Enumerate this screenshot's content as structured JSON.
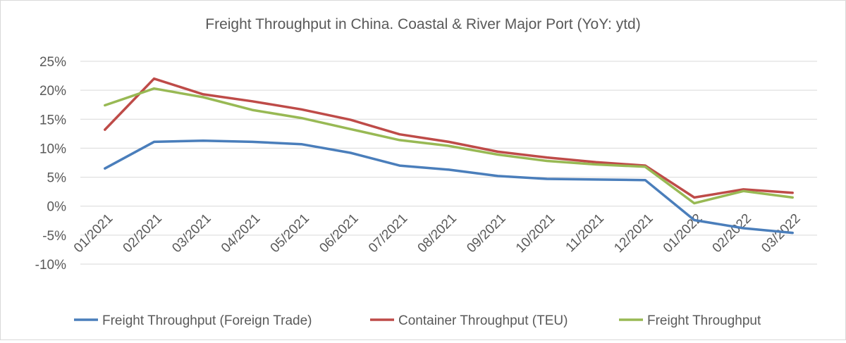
{
  "chart_data": {
    "type": "line",
    "title": "Freight Throughput in China. Coastal & River Major Port (YoY: ytd)",
    "xlabel": "",
    "ylabel": "",
    "ylim": [
      -10,
      25
    ],
    "yticks": [
      25,
      20,
      15,
      10,
      5,
      0,
      -5,
      -10
    ],
    "ytick_labels": [
      "25%",
      "20%",
      "15%",
      "10%",
      "5%",
      "0%",
      "-5%",
      "-10%"
    ],
    "grid": true,
    "legend_position": "bottom",
    "categories": [
      "01/2021",
      "02/2021",
      "03/2021",
      "04/2021",
      "05/2021",
      "06/2021",
      "07/2021",
      "08/2021",
      "09/2021",
      "10/2021",
      "11/2021",
      "12/2021",
      "01/2022",
      "02/2022",
      "03/2022"
    ],
    "series": [
      {
        "name": "Freight Throughput (Foreign Trade)",
        "color": "#4a7ebb",
        "values": [
          6.5,
          11.1,
          11.3,
          11.1,
          10.7,
          9.2,
          7.0,
          6.3,
          5.2,
          4.7,
          4.6,
          4.5,
          -2.4,
          -3.8,
          -4.6
        ]
      },
      {
        "name": "Container Throughput (TEU)",
        "color": "#be4b48",
        "values": [
          13.2,
          22.0,
          19.3,
          18.1,
          16.7,
          14.9,
          12.4,
          11.1,
          9.4,
          8.4,
          7.6,
          7.0,
          1.5,
          2.9,
          2.3
        ]
      },
      {
        "name": "Freight Throughput",
        "color": "#98b954",
        "values": [
          17.4,
          20.3,
          18.8,
          16.6,
          15.2,
          13.3,
          11.4,
          10.4,
          8.9,
          7.8,
          7.2,
          6.8,
          0.5,
          2.6,
          1.5
        ]
      }
    ]
  }
}
